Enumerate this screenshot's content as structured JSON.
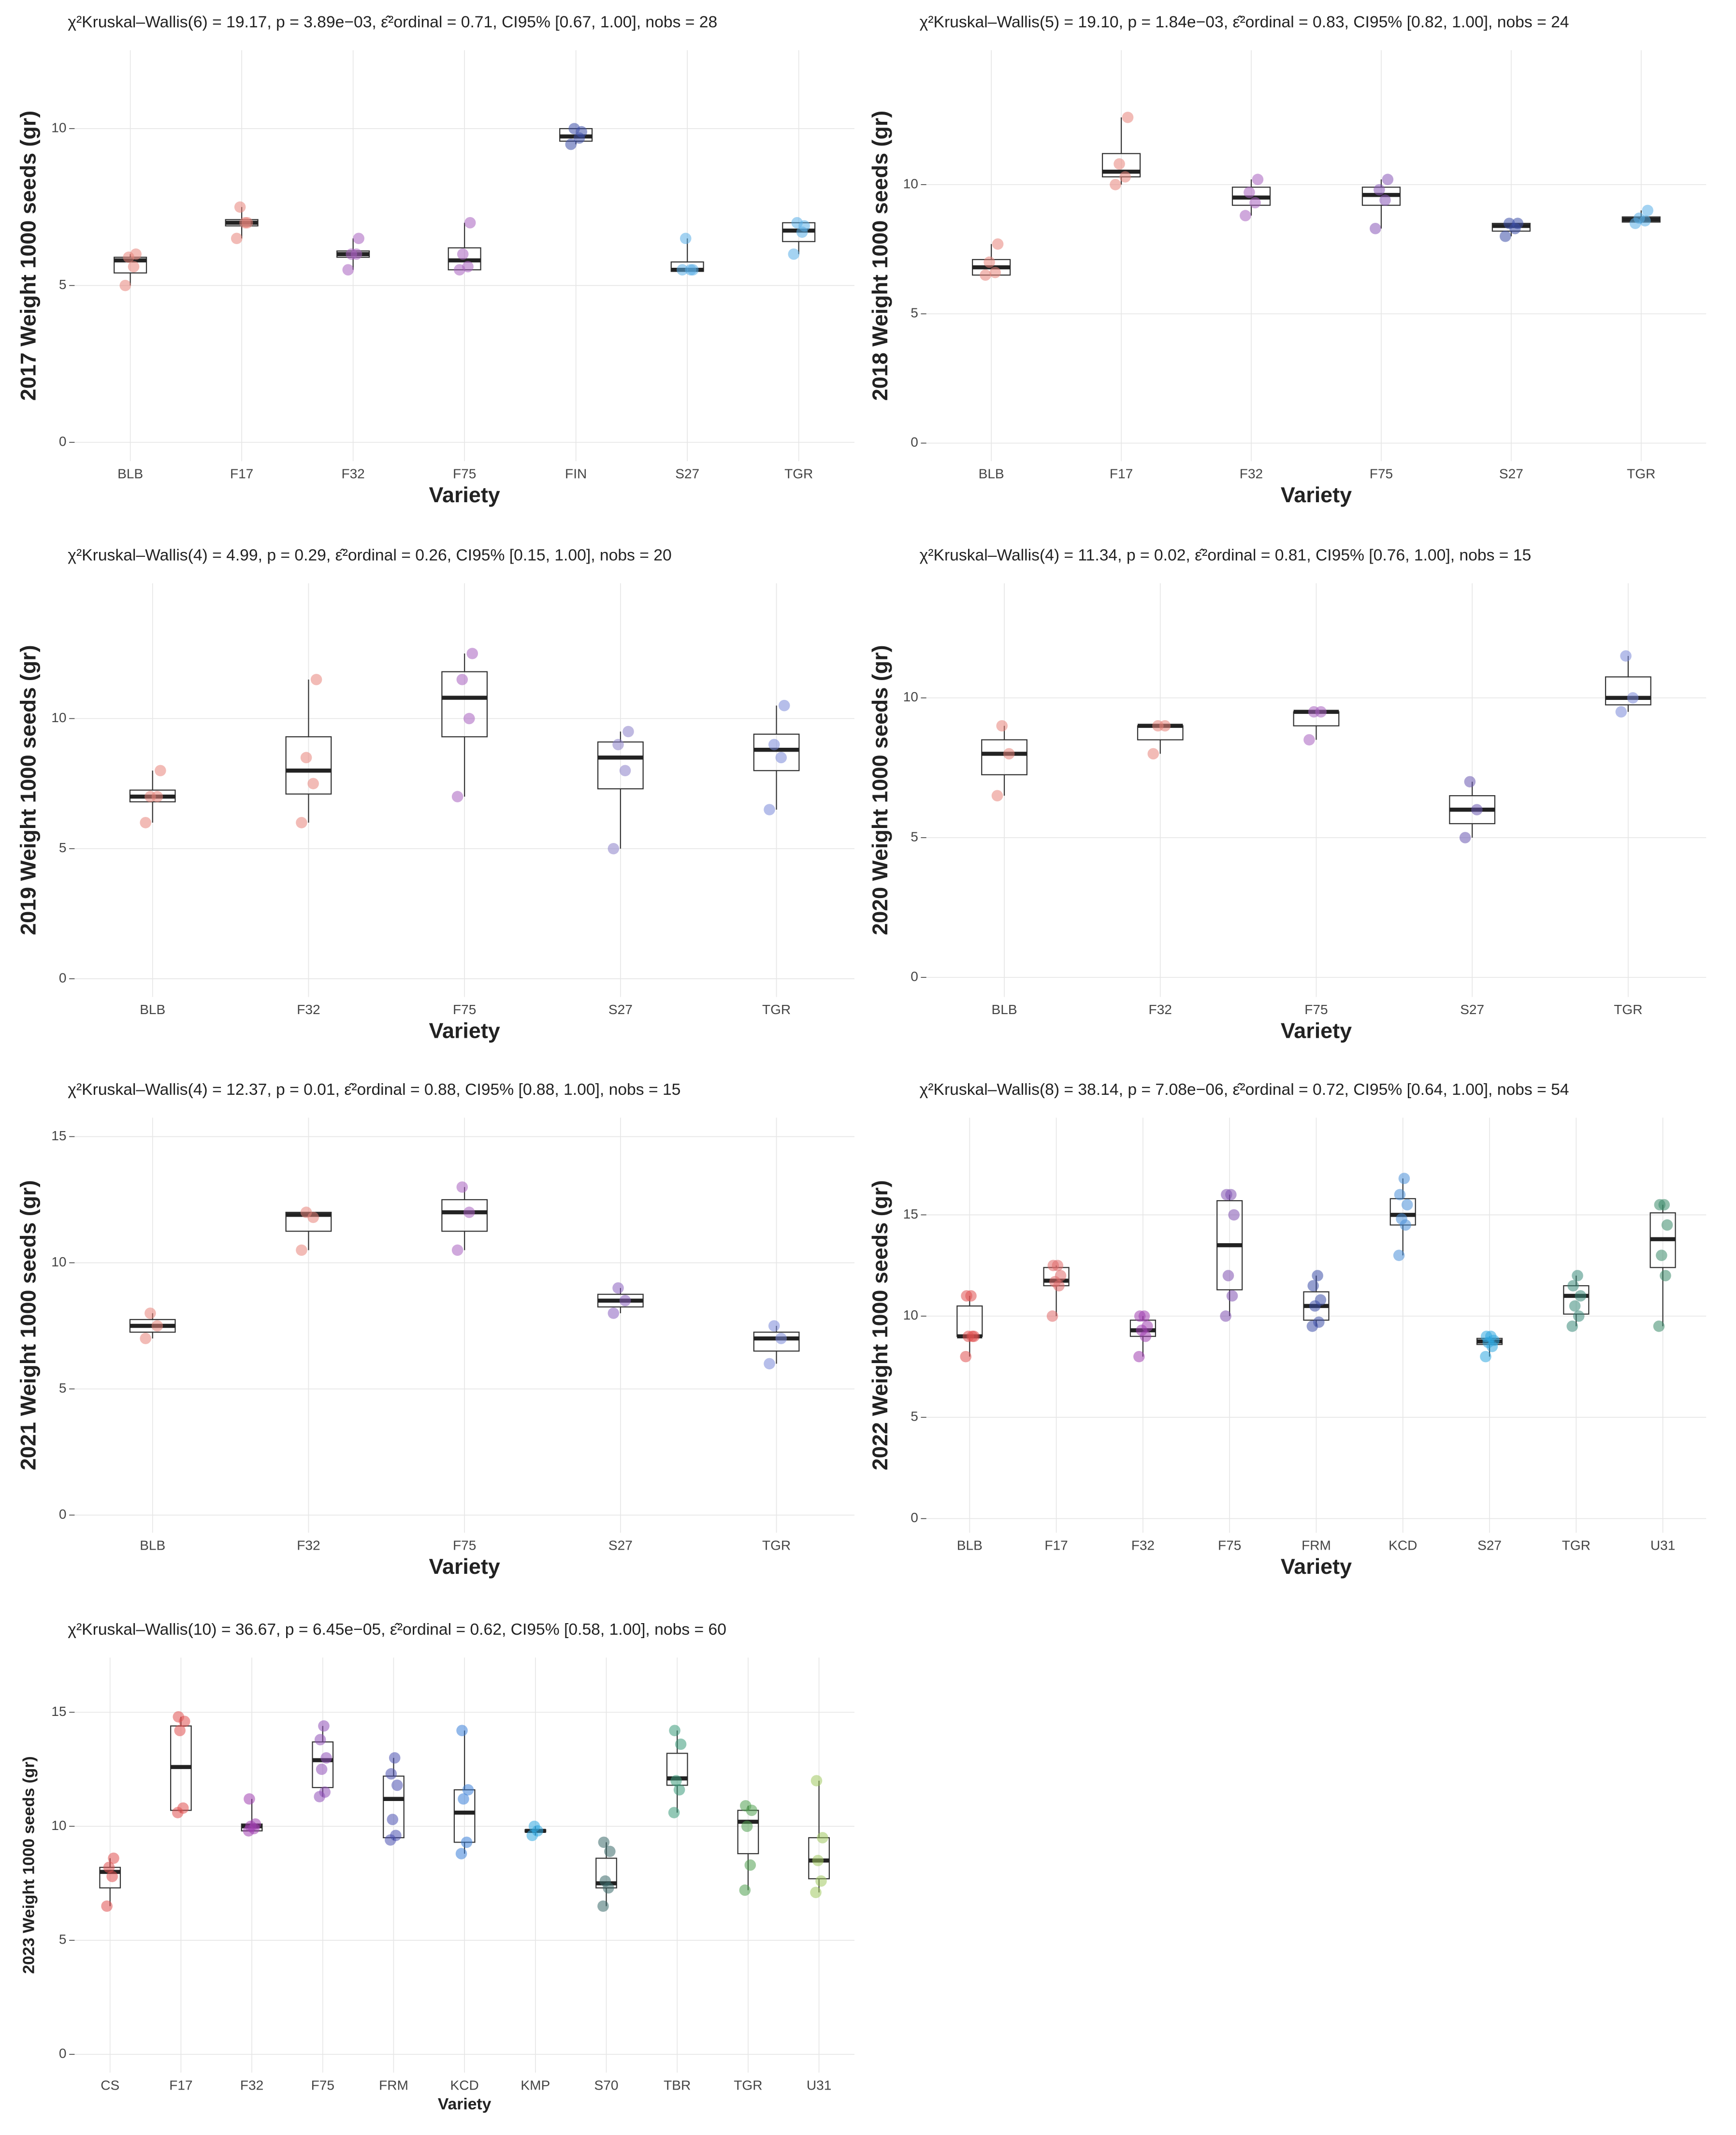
{
  "chart_data": [
    {
      "type": "box",
      "title": "χ²Kruskal–Wallis(6) = 19.17, p = 3.89e−03, ε̂²ordinal = 0.71, CI95% [0.67, 1.00], nobs = 28",
      "ylabel": "2017 Weight 1000 seeds (gr)",
      "xlabel": "Variety",
      "grid": true,
      "categories": [
        "BLB",
        "F17",
        "F32",
        "F75",
        "FIN",
        "S27",
        "TGR"
      ],
      "colors": [
        "#e8847a",
        "#e8847a",
        "#a860c0",
        "#a860c0",
        "#3d4fa8",
        "#5aaee8",
        "#5aaee8"
      ],
      "ylim": [
        -0.6,
        12.5
      ],
      "yticks": [
        0,
        5,
        10
      ],
      "boxes": [
        {
          "low": 5.0,
          "q1": 5.4,
          "median": 5.8,
          "q3": 5.9,
          "high": 6.0
        },
        {
          "low": 6.5,
          "q1": 6.9,
          "median": 7.0,
          "q3": 7.1,
          "high": 7.5
        },
        {
          "low": 5.5,
          "q1": 5.9,
          "median": 6.0,
          "q3": 6.1,
          "high": 6.5
        },
        {
          "low": 5.5,
          "q1": 5.5,
          "median": 5.8,
          "q3": 6.2,
          "high": 7.0
        },
        {
          "low": 9.5,
          "q1": 9.6,
          "median": 9.75,
          "q3": 10.0,
          "high": 10.0
        },
        {
          "low": 5.45,
          "q1": 5.45,
          "median": 5.5,
          "q3": 5.75,
          "high": 6.5
        },
        {
          "low": 6.0,
          "q1": 6.4,
          "median": 6.75,
          "q3": 7.0,
          "high": 7.0
        }
      ],
      "points": [
        [
          5.0,
          5.6,
          5.9,
          6.0
        ],
        [
          6.5,
          7.0,
          7.5,
          7.0
        ],
        [
          5.5,
          6.0,
          6.0,
          6.5
        ],
        [
          5.5,
          5.6,
          6.0,
          7.0
        ],
        [
          9.5,
          9.7,
          10.0,
          9.9
        ],
        [
          5.5,
          5.5,
          6.5,
          5.5
        ],
        [
          6.0,
          6.7,
          7.0,
          6.9
        ]
      ]
    },
    {
      "type": "box",
      "title": "χ²Kruskal–Wallis(5) = 19.10, p = 1.84e−03, ε̂²ordinal = 0.83, CI95% [0.82, 1.00], nobs = 24",
      "ylabel": "2018 Weight 1000 seeds (gr)",
      "xlabel": "Variety",
      "grid": true,
      "categories": [
        "BLB",
        "F17",
        "F32",
        "F75",
        "S27",
        "TGR"
      ],
      "colors": [
        "#e8847a",
        "#e8847a",
        "#a860c0",
        "#8858b8",
        "#3d4fa8",
        "#5aaee8"
      ],
      "ylim": [
        -0.7,
        15.2
      ],
      "yticks": [
        0,
        5,
        10
      ],
      "boxes": [
        {
          "low": 6.5,
          "q1": 6.5,
          "median": 6.8,
          "q3": 7.1,
          "high": 7.7
        },
        {
          "low": 10.0,
          "q1": 10.3,
          "median": 10.5,
          "q3": 11.2,
          "high": 12.6
        },
        {
          "low": 8.8,
          "q1": 9.2,
          "median": 9.5,
          "q3": 9.9,
          "high": 10.2
        },
        {
          "low": 8.3,
          "q1": 9.2,
          "median": 9.6,
          "q3": 9.9,
          "high": 10.2
        },
        {
          "low": 8.0,
          "q1": 8.2,
          "median": 8.4,
          "q3": 8.5,
          "high": 8.5
        },
        {
          "low": 8.5,
          "q1": 8.55,
          "median": 8.65,
          "q3": 8.75,
          "high": 9.0
        }
      ],
      "points": [
        [
          6.5,
          6.6,
          7.0,
          7.7
        ],
        [
          10.0,
          10.3,
          10.8,
          12.6
        ],
        [
          8.8,
          9.3,
          9.7,
          10.2
        ],
        [
          8.3,
          9.4,
          9.8,
          10.2
        ],
        [
          8.0,
          8.3,
          8.5,
          8.5
        ],
        [
          8.5,
          8.6,
          8.7,
          9.0
        ]
      ]
    },
    {
      "type": "box",
      "title": "χ²Kruskal–Wallis(4) = 4.99, p = 0.29, ε̂²ordinal = 0.26, CI95% [0.15, 1.00], nobs = 20",
      "ylabel": "2019 Weight 1000 seeds (gr)",
      "xlabel": "Variety",
      "grid": true,
      "categories": [
        "BLB",
        "F32",
        "F75",
        "S27",
        "TGR"
      ],
      "colors": [
        "#e8847a",
        "#e8847a",
        "#a860c0",
        "#8a80c8",
        "#7a88d8"
      ],
      "ylim": [
        -0.7,
        15.2
      ],
      "yticks": [
        0,
        5,
        10
      ],
      "boxes": [
        {
          "low": 6.0,
          "q1": 6.8,
          "median": 7.0,
          "q3": 7.25,
          "high": 8.0
        },
        {
          "low": 6.0,
          "q1": 7.1,
          "median": 8.0,
          "q3": 9.3,
          "high": 11.5
        },
        {
          "low": 7.0,
          "q1": 9.3,
          "median": 10.8,
          "q3": 11.8,
          "high": 12.5
        },
        {
          "low": 5.0,
          "q1": 7.3,
          "median": 8.5,
          "q3": 9.1,
          "high": 9.5
        },
        {
          "low": 6.5,
          "q1": 8.0,
          "median": 8.8,
          "q3": 9.4,
          "high": 10.5
        }
      ],
      "points": [
        [
          6.0,
          7.0,
          7.0,
          8.0
        ],
        [
          6.0,
          7.5,
          8.5,
          11.5
        ],
        [
          7.0,
          10.0,
          11.5,
          12.5
        ],
        [
          5.0,
          8.0,
          9.0,
          9.5
        ],
        [
          6.5,
          8.5,
          9.0,
          10.5
        ]
      ]
    },
    {
      "type": "box",
      "title": "χ²Kruskal–Wallis(4) = 11.34, p = 0.02, ε̂²ordinal = 0.81, CI95% [0.76, 1.00], nobs = 15",
      "ylabel": "2020 Weight 1000 seeds (gr)",
      "xlabel": "Variety",
      "grid": true,
      "categories": [
        "BLB",
        "F32",
        "F75",
        "S27",
        "TGR"
      ],
      "colors": [
        "#e8847a",
        "#e8847a",
        "#a860c0",
        "#6a58b0",
        "#7a88d8"
      ],
      "ylim": [
        -0.7,
        14.1
      ],
      "yticks": [
        0,
        5,
        10
      ],
      "boxes": [
        {
          "low": 6.5,
          "q1": 7.25,
          "median": 8.0,
          "q3": 8.5,
          "high": 9.0
        },
        {
          "low": 8.0,
          "q1": 8.5,
          "median": 9.0,
          "q3": 9.0,
          "high": 9.0
        },
        {
          "low": 8.5,
          "q1": 9.0,
          "median": 9.5,
          "q3": 9.5,
          "high": 9.5
        },
        {
          "low": 5.0,
          "q1": 5.5,
          "median": 6.0,
          "q3": 6.5,
          "high": 7.0
        },
        {
          "low": 9.5,
          "q1": 9.75,
          "median": 10.0,
          "q3": 10.75,
          "high": 11.5
        }
      ],
      "points": [
        [
          6.5,
          8.0,
          9.0
        ],
        [
          8.0,
          9.0,
          9.0
        ],
        [
          8.5,
          9.5,
          9.5
        ],
        [
          5.0,
          6.0,
          7.0
        ],
        [
          9.5,
          10.0,
          11.5
        ]
      ]
    },
    {
      "type": "box",
      "title": "χ²Kruskal–Wallis(4) = 12.37, p = 0.01, ε̂²ordinal = 0.88, CI95% [0.88, 1.00], nobs = 15",
      "ylabel": "2021 Weight 1000 seeds (gr)",
      "xlabel": "Variety",
      "grid": true,
      "categories": [
        "BLB",
        "F32",
        "F75",
        "S27",
        "TGR"
      ],
      "colors": [
        "#e8847a",
        "#e8847a",
        "#a860c0",
        "#8a60c0",
        "#7a88d8"
      ],
      "ylim": [
        -0.7,
        15.75
      ],
      "yticks": [
        0,
        5,
        10,
        15
      ],
      "boxes": [
        {
          "low": 7.0,
          "q1": 7.25,
          "median": 7.5,
          "q3": 7.75,
          "high": 8.0
        },
        {
          "low": 10.5,
          "q1": 11.25,
          "median": 11.9,
          "q3": 12.0,
          "high": 12.0
        },
        {
          "low": 10.5,
          "q1": 11.25,
          "median": 12.0,
          "q3": 12.5,
          "high": 13.0
        },
        {
          "low": 8.0,
          "q1": 8.25,
          "median": 8.5,
          "q3": 8.75,
          "high": 9.0
        },
        {
          "low": 6.0,
          "q1": 6.5,
          "median": 7.0,
          "q3": 7.25,
          "high": 7.5
        }
      ],
      "points": [
        [
          7.0,
          7.5,
          8.0
        ],
        [
          10.5,
          11.8,
          12.0
        ],
        [
          10.5,
          12.0,
          13.0
        ],
        [
          8.0,
          8.5,
          9.0
        ],
        [
          6.0,
          7.0,
          7.5
        ]
      ]
    },
    {
      "type": "box",
      "title": "χ²Kruskal–Wallis(8) = 38.14, p = 7.08e−06, ε̂²ordinal = 0.72, CI95% [0.64, 1.00], nobs = 54",
      "ylabel": "2022 Weight 1000 seeds (gr)",
      "xlabel": "Variety",
      "grid": true,
      "categories": [
        "BLB",
        "F17",
        "F32",
        "F75",
        "FRM",
        "KCD",
        "S27",
        "TGR",
        "U31"
      ],
      "colors": [
        "#e05050",
        "#e06a6a",
        "#a040b0",
        "#8050b0",
        "#3d4fa8",
        "#4a90d8",
        "#30a8e0",
        "#3a8a7a",
        "#3a8a6a"
      ],
      "ylim": [
        -0.7,
        19.8
      ],
      "yticks": [
        0,
        5,
        10,
        15
      ],
      "boxes": [
        {
          "low": 8.0,
          "q1": 9.0,
          "median": 9.0,
          "q3": 10.5,
          "high": 11.0
        },
        {
          "low": 10.0,
          "q1": 11.5,
          "median": 11.75,
          "q3": 12.4,
          "high": 12.5
        },
        {
          "low": 8.0,
          "q1": 9.0,
          "median": 9.3,
          "q3": 9.8,
          "high": 10.0
        },
        {
          "low": 10.0,
          "q1": 11.3,
          "median": 13.5,
          "q3": 15.7,
          "high": 16.0
        },
        {
          "low": 9.5,
          "q1": 9.8,
          "median": 10.5,
          "q3": 11.2,
          "high": 12.0
        },
        {
          "low": 13.0,
          "q1": 14.5,
          "median": 15.0,
          "q3": 15.8,
          "high": 16.8
        },
        {
          "low": 8.0,
          "q1": 8.6,
          "median": 8.75,
          "q3": 8.9,
          "high": 9.0
        },
        {
          "low": 9.5,
          "q1": 10.1,
          "median": 11.0,
          "q3": 11.5,
          "high": 12.0
        },
        {
          "low": 9.5,
          "q1": 12.4,
          "median": 13.8,
          "q3": 15.1,
          "high": 15.5
        }
      ],
      "points": [
        [
          8.0,
          9.0,
          9.0,
          9.0,
          11.0,
          11.0
        ],
        [
          10.0,
          11.5,
          11.7,
          12.0,
          12.5,
          12.5
        ],
        [
          8.0,
          9.0,
          9.3,
          9.5,
          10.0,
          10.0
        ],
        [
          10.0,
          11.0,
          12.0,
          15.0,
          16.0,
          16.0
        ],
        [
          9.5,
          9.7,
          10.5,
          10.8,
          11.5,
          12.0
        ],
        [
          13.0,
          14.5,
          14.8,
          15.5,
          16.0,
          16.8
        ],
        [
          8.0,
          8.5,
          8.7,
          8.8,
          9.0,
          9.0
        ],
        [
          9.5,
          10.0,
          10.5,
          11.0,
          11.5,
          12.0
        ],
        [
          9.5,
          12.0,
          13.0,
          14.5,
          15.5,
          15.5
        ]
      ]
    },
    {
      "type": "box",
      "title": "χ²Kruskal–Wallis(10) = 36.67, p = 6.45e−05, ε̂²ordinal = 0.62, CI95% [0.58, 1.00], nobs = 60",
      "ylabel": "2023 Weight 1000 seeds (gr)",
      "xlabel": "Variety",
      "grid": true,
      "categories": [
        "CS",
        "F17",
        "F32",
        "F75",
        "FRM",
        "KCD",
        "KMP",
        "S70",
        "TBR",
        "TGR",
        "U31"
      ],
      "colors": [
        "#e05050",
        "#e05050",
        "#a040b0",
        "#9050b8",
        "#4a50b0",
        "#3a80d8",
        "#30a8e0",
        "#3a6a6a",
        "#3a9a7a",
        "#50a050",
        "#a0c860"
      ],
      "ylim": [
        -0.8,
        17.4
      ],
      "yticks": [
        0,
        5,
        10,
        15
      ],
      "boxes": [
        {
          "low": 6.5,
          "q1": 7.3,
          "median": 8.0,
          "q3": 8.2,
          "high": 8.6
        },
        {
          "low": 10.6,
          "q1": 10.7,
          "median": 12.6,
          "q3": 14.4,
          "high": 14.8
        },
        {
          "low": 9.8,
          "q1": 9.8,
          "median": 10.0,
          "q3": 10.1,
          "high": 11.2
        },
        {
          "low": 11.3,
          "q1": 11.7,
          "median": 12.9,
          "q3": 13.7,
          "high": 14.4
        },
        {
          "low": 9.4,
          "q1": 9.5,
          "median": 11.2,
          "q3": 12.2,
          "high": 13.0
        },
        {
          "low": 8.8,
          "q1": 9.3,
          "median": 10.6,
          "q3": 11.6,
          "high": 14.2
        },
        {
          "low": 9.6,
          "q1": 9.75,
          "median": 9.8,
          "q3": 9.85,
          "high": 10.0
        },
        {
          "low": 6.5,
          "q1": 7.3,
          "median": 7.5,
          "q3": 8.6,
          "high": 9.3
        },
        {
          "low": 10.6,
          "q1": 11.8,
          "median": 12.1,
          "q3": 13.2,
          "high": 14.2
        },
        {
          "low": 7.2,
          "q1": 8.8,
          "median": 10.2,
          "q3": 10.7,
          "high": 10.9
        },
        {
          "low": 7.1,
          "q1": 7.7,
          "median": 8.5,
          "q3": 9.5,
          "high": 12.0
        }
      ],
      "points": [
        [
          6.5,
          7.8,
          8.2,
          8.6
        ],
        [
          10.6,
          10.8,
          14.2,
          14.6,
          14.8
        ],
        [
          9.8,
          9.9,
          10.0,
          10.1,
          11.2
        ],
        [
          11.3,
          11.5,
          12.5,
          13.0,
          13.8,
          14.4
        ],
        [
          9.4,
          9.6,
          10.3,
          11.8,
          12.3,
          13.0
        ],
        [
          8.8,
          9.3,
          11.2,
          11.6,
          14.2
        ],
        [
          9.6,
          9.8,
          10.0
        ],
        [
          6.5,
          7.3,
          7.6,
          8.9,
          9.3
        ],
        [
          10.6,
          11.6,
          12.0,
          13.6,
          14.2
        ],
        [
          7.2,
          8.3,
          10.0,
          10.7,
          10.9
        ],
        [
          7.1,
          7.6,
          8.5,
          9.5,
          12.0
        ]
      ]
    }
  ]
}
